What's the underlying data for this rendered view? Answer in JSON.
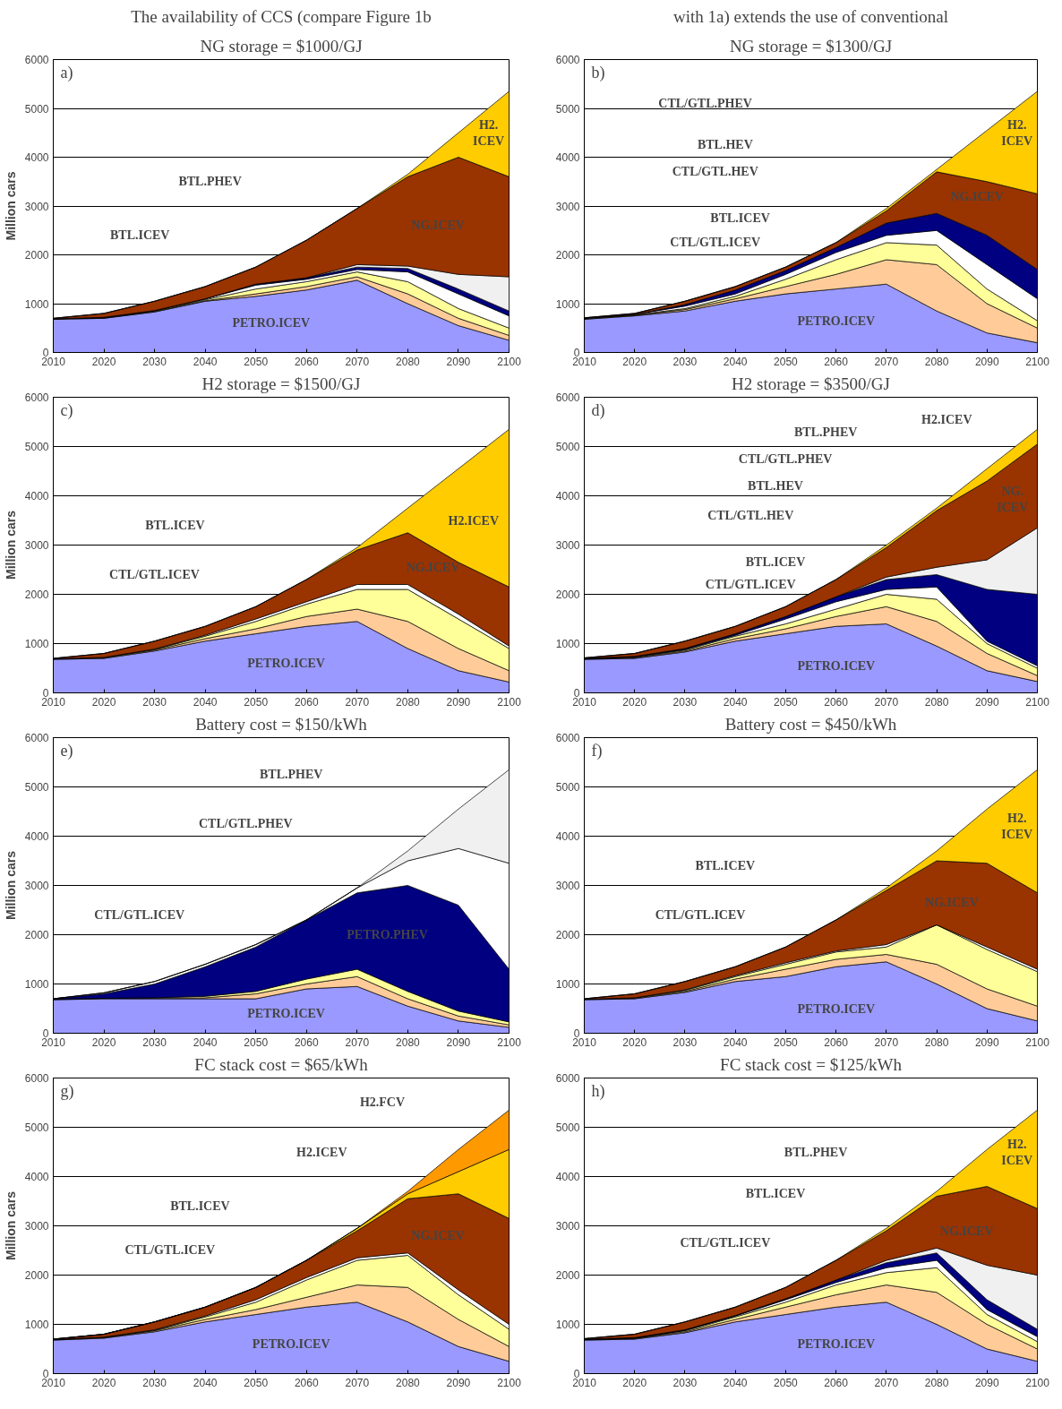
{
  "chart_data": [
    {
      "type": "area",
      "stacked": true,
      "title": "The availability of CCS (compare Figure 1b",
      "subtitle": "NG storage = $1000/GJ",
      "ylabel": "Million cars",
      "x": [
        2010,
        2020,
        2030,
        2040,
        2050,
        2060,
        2070,
        2080,
        2090,
        2100
      ],
      "xlim": [
        2010,
        2100
      ],
      "xticks": [
        2010,
        2020,
        2030,
        2040,
        2050,
        2060,
        2070,
        2080,
        2090,
        2100
      ],
      "ylim": [
        0,
        6000
      ],
      "yticks": [
        0,
        1000,
        2000,
        3000,
        4000,
        5000,
        6000
      ],
      "grid": "y",
      "series": [
        {
          "color": "#9999ff",
          "values": [
            680,
            700,
            830,
            1050,
            1150,
            1280,
            1480,
            1000,
            550,
            250
          ]
        },
        {
          "color": "#ffcc99",
          "values": [
            10,
            10,
            10,
            10,
            50,
            70,
            70,
            200,
            150,
            100
          ]
        },
        {
          "color": "#ffff99",
          "values": [
            0,
            0,
            10,
            20,
            100,
            100,
            100,
            250,
            200,
            150
          ]
        },
        {
          "color": "#ffffff",
          "values": [
            0,
            10,
            10,
            20,
            80,
            50,
            50,
            200,
            300,
            250
          ]
        },
        {
          "color": "#000080",
          "values": [
            0,
            0,
            0,
            0,
            20,
            30,
            50,
            70,
            100,
            100
          ]
        },
        {
          "color": "#f0f0f0",
          "values": [
            0,
            0,
            0,
            0,
            0,
            0,
            50,
            50,
            300,
            700
          ]
        },
        {
          "color": "#993300",
          "values": [
            10,
            80,
            190,
            250,
            350,
            770,
            1150,
            1830,
            2400,
            2050
          ]
        },
        {
          "color": "#ffcc00",
          "values": [
            0,
            0,
            0,
            0,
            0,
            0,
            0,
            50,
            500,
            1750
          ]
        }
      ],
      "annotations": [
        "a)",
        "PETRO.ICEV",
        "BTL.ICEV",
        "BTL.PHEV",
        "NG.ICEV",
        "H2.\nICEV"
      ]
    },
    {
      "type": "area",
      "stacked": true,
      "title": "with 1a) extends the use of conventional",
      "subtitle": "NG storage = $1300/GJ",
      "x": [
        2010,
        2020,
        2030,
        2040,
        2050,
        2060,
        2070,
        2080,
        2090,
        2100
      ],
      "xlim": [
        2010,
        2100
      ],
      "xticks": [
        2010,
        2020,
        2030,
        2040,
        2050,
        2060,
        2070,
        2080,
        2090,
        2100
      ],
      "ylim": [
        0,
        6000
      ],
      "yticks": [
        0,
        1000,
        2000,
        3000,
        4000,
        5000,
        6000
      ],
      "grid": "y",
      "series": [
        {
          "color": "#9999ff",
          "values": [
            680,
            750,
            850,
            1050,
            1200,
            1300,
            1400,
            850,
            400,
            200
          ]
        },
        {
          "color": "#ffcc99",
          "values": [
            10,
            10,
            30,
            50,
            150,
            300,
            500,
            950,
            600,
            300
          ]
        },
        {
          "color": "#ffff99",
          "values": [
            0,
            10,
            20,
            50,
            150,
            300,
            350,
            400,
            300,
            150
          ]
        },
        {
          "color": "#ffffff",
          "values": [
            10,
            10,
            50,
            50,
            100,
            150,
            150,
            300,
            500,
            450
          ]
        },
        {
          "color": "#000080",
          "values": [
            0,
            0,
            30,
            80,
            80,
            100,
            250,
            350,
            600,
            600
          ]
        },
        {
          "color": "#993300",
          "values": [
            10,
            20,
            70,
            70,
            70,
            100,
            250,
            850,
            1100,
            1550
          ]
        },
        {
          "color": "#ffcc00",
          "values": [
            0,
            0,
            0,
            0,
            0,
            0,
            50,
            50,
            1050,
            2100
          ]
        }
      ],
      "annotations": [
        "b)",
        "CTL/GTL.PHEV",
        "BTL.HEV",
        "CTL/GTL.HEV",
        "BTL.ICEV",
        "CTL/GTL.ICEV",
        "NG.ICEV",
        "H2.\nICEV",
        "PETRO.ICEV"
      ]
    },
    {
      "type": "area",
      "stacked": true,
      "title": "H2 storage = $1500/GJ",
      "ylabel": "Million cars",
      "x": [
        2010,
        2020,
        2030,
        2040,
        2050,
        2060,
        2070,
        2080,
        2090,
        2100
      ],
      "xlim": [
        2010,
        2100
      ],
      "xticks": [
        2010,
        2020,
        2030,
        2040,
        2050,
        2060,
        2070,
        2080,
        2090,
        2100
      ],
      "ylim": [
        0,
        6000
      ],
      "yticks": [
        0,
        1000,
        2000,
        3000,
        4000,
        5000,
        6000
      ],
      "grid": "y",
      "series": [
        {
          "color": "#9999ff",
          "values": [
            680,
            700,
            850,
            1050,
            1200,
            1350,
            1450,
            900,
            450,
            220
          ]
        },
        {
          "color": "#ffcc99",
          "values": [
            10,
            10,
            20,
            50,
            100,
            200,
            250,
            550,
            450,
            230
          ]
        },
        {
          "color": "#ffff99",
          "values": [
            0,
            10,
            10,
            50,
            150,
            250,
            400,
            650,
            600,
            450
          ]
        },
        {
          "color": "#ffffff",
          "values": [
            0,
            0,
            10,
            20,
            50,
            50,
            100,
            100,
            100,
            50
          ]
        },
        {
          "color": "#993300",
          "values": [
            10,
            80,
            160,
            180,
            250,
            450,
            700,
            1050,
            1050,
            1200
          ]
        },
        {
          "color": "#ffcc00",
          "values": [
            0,
            0,
            0,
            0,
            0,
            0,
            50,
            500,
            1900,
            3200
          ]
        }
      ],
      "annotations": [
        "c)",
        "BTL.ICEV",
        "CTL/GTL.ICEV",
        "NG.ICEV",
        "H2.ICEV",
        "PETRO.ICEV"
      ]
    },
    {
      "type": "area",
      "stacked": true,
      "title": "H2 storage = $3500/GJ",
      "x": [
        2010,
        2020,
        2030,
        2040,
        2050,
        2060,
        2070,
        2080,
        2090,
        2100
      ],
      "xlim": [
        2010,
        2100
      ],
      "xticks": [
        2010,
        2020,
        2030,
        2040,
        2050,
        2060,
        2070,
        2080,
        2090,
        2100
      ],
      "ylim": [
        0,
        6000
      ],
      "yticks": [
        0,
        1000,
        2000,
        3000,
        4000,
        5000,
        6000
      ],
      "grid": "y",
      "series": [
        {
          "color": "#9999ff",
          "values": [
            680,
            700,
            830,
            1050,
            1200,
            1350,
            1400,
            950,
            450,
            230
          ]
        },
        {
          "color": "#ffcc99",
          "values": [
            10,
            10,
            20,
            50,
            100,
            200,
            350,
            500,
            350,
            120
          ]
        },
        {
          "color": "#ffff99",
          "values": [
            0,
            10,
            20,
            50,
            100,
            150,
            250,
            450,
            200,
            150
          ]
        },
        {
          "color": "#ffffff",
          "values": [
            0,
            10,
            10,
            20,
            100,
            150,
            100,
            250,
            50,
            50
          ]
        },
        {
          "color": "#000080",
          "values": [
            10,
            10,
            20,
            30,
            50,
            100,
            200,
            250,
            1050,
            1450
          ]
        },
        {
          "color": "#f0f0f0",
          "values": [
            0,
            0,
            0,
            0,
            0,
            0,
            50,
            150,
            600,
            1350
          ]
        },
        {
          "color": "#993300",
          "values": [
            10,
            60,
            150,
            150,
            200,
            350,
            600,
            1150,
            1600,
            1700
          ]
        },
        {
          "color": "#ffcc00",
          "values": [
            0,
            0,
            0,
            0,
            0,
            0,
            50,
            50,
            250,
            300
          ]
        }
      ],
      "annotations": [
        "d)",
        "BTL.PHEV",
        "H2.ICEV",
        "CTL/GTL.PHEV",
        "BTL.HEV",
        "CTL/GTL.HEV",
        "BTL.ICEV",
        "CTL/GTL.ICEV",
        "NG.\nICEV",
        "PETRO.ICEV"
      ]
    },
    {
      "type": "area",
      "stacked": true,
      "title": "Battery cost = $150/kWh",
      "ylabel": "Million cars",
      "x": [
        2010,
        2020,
        2030,
        2040,
        2050,
        2060,
        2070,
        2080,
        2090,
        2100
      ],
      "xlim": [
        2010,
        2100
      ],
      "xticks": [
        2010,
        2020,
        2030,
        2040,
        2050,
        2060,
        2070,
        2080,
        2090,
        2100
      ],
      "ylim": [
        0,
        6000
      ],
      "yticks": [
        0,
        1000,
        2000,
        3000,
        4000,
        5000,
        6000
      ],
      "grid": "y",
      "series": [
        {
          "color": "#9999ff",
          "values": [
            680,
            700,
            700,
            700,
            700,
            900,
            950,
            550,
            250,
            120
          ]
        },
        {
          "color": "#ffcc99",
          "values": [
            10,
            10,
            10,
            20,
            100,
            100,
            200,
            150,
            100,
            50
          ]
        },
        {
          "color": "#ffff99",
          "values": [
            0,
            0,
            10,
            30,
            50,
            100,
            150,
            150,
            100,
            60
          ]
        },
        {
          "color": "#000080",
          "values": [
            10,
            90,
            280,
            600,
            900,
            1200,
            1550,
            2150,
            2150,
            1070
          ]
        },
        {
          "color": "#ffffff",
          "values": [
            0,
            20,
            50,
            50,
            50,
            0,
            100,
            500,
            1150,
            2150
          ]
        },
        {
          "color": "#f0f0f0",
          "values": [
            0,
            0,
            0,
            0,
            0,
            0,
            0,
            200,
            800,
            1900
          ]
        }
      ],
      "annotations": [
        "e)",
        "BTL.PHEV",
        "CTL/GTL.PHEV",
        "CTL/GTL.ICEV",
        "PETRO.PHEV",
        "PETRO.ICEV"
      ]
    },
    {
      "type": "area",
      "stacked": true,
      "title": "Battery cost = $450/kWh",
      "x": [
        2010,
        2020,
        2030,
        2040,
        2050,
        2060,
        2070,
        2080,
        2090,
        2100
      ],
      "xlim": [
        2010,
        2100
      ],
      "xticks": [
        2010,
        2020,
        2030,
        2040,
        2050,
        2060,
        2070,
        2080,
        2090,
        2100
      ],
      "ylim": [
        0,
        6000
      ],
      "yticks": [
        0,
        1000,
        2000,
        3000,
        4000,
        5000,
        6000
      ],
      "grid": "y",
      "series": [
        {
          "color": "#9999ff",
          "values": [
            680,
            700,
            830,
            1050,
            1150,
            1350,
            1450,
            1000,
            500,
            250
          ]
        },
        {
          "color": "#ffcc99",
          "values": [
            10,
            10,
            20,
            50,
            150,
            150,
            150,
            400,
            400,
            300
          ]
        },
        {
          "color": "#ffff99",
          "values": [
            0,
            10,
            20,
            50,
            100,
            150,
            150,
            800,
            800,
            700
          ]
        },
        {
          "color": "#ffffff",
          "values": [
            0,
            0,
            10,
            20,
            30,
            20,
            50,
            0,
            50,
            50
          ]
        },
        {
          "color": "#993300",
          "values": [
            10,
            80,
            170,
            180,
            320,
            630,
            1100,
            1300,
            1700,
            1550
          ]
        },
        {
          "color": "#ffcc00",
          "values": [
            0,
            0,
            0,
            0,
            0,
            0,
            50,
            200,
            1100,
            2500
          ]
        }
      ],
      "annotations": [
        "f)",
        "H2.\nICEV",
        "BTL.ICEV",
        "NG.ICEV",
        "CTL/GTL.ICEV",
        "PETRO.ICEV"
      ]
    },
    {
      "type": "area",
      "stacked": true,
      "title": "FC stack cost = $65/kWh",
      "ylabel": "Million cars",
      "x": [
        2010,
        2020,
        2030,
        2040,
        2050,
        2060,
        2070,
        2080,
        2090,
        2100
      ],
      "xlim": [
        2010,
        2100
      ],
      "xticks": [
        2010,
        2020,
        2030,
        2040,
        2050,
        2060,
        2070,
        2080,
        2090,
        2100
      ],
      "ylim": [
        0,
        6000
      ],
      "yticks": [
        0,
        1000,
        2000,
        3000,
        4000,
        5000,
        6000
      ],
      "grid": "y",
      "series": [
        {
          "color": "#9999ff",
          "values": [
            680,
            720,
            850,
            1050,
            1200,
            1350,
            1450,
            1050,
            550,
            250
          ]
        },
        {
          "color": "#ffcc99",
          "values": [
            10,
            10,
            20,
            50,
            100,
            200,
            350,
            700,
            550,
            300
          ]
        },
        {
          "color": "#ffff99",
          "values": [
            0,
            10,
            10,
            50,
            150,
            350,
            500,
            650,
            500,
            350
          ]
        },
        {
          "color": "#ffffff",
          "values": [
            0,
            0,
            10,
            20,
            50,
            50,
            50,
            50,
            100,
            100
          ]
        },
        {
          "color": "#993300",
          "values": [
            10,
            60,
            160,
            180,
            250,
            350,
            550,
            1100,
            1950,
            2150
          ]
        },
        {
          "color": "#ffcc00",
          "values": [
            0,
            0,
            0,
            0,
            0,
            0,
            50,
            100,
            450,
            1400
          ]
        },
        {
          "color": "#ff9900",
          "values": [
            0,
            0,
            0,
            0,
            0,
            0,
            0,
            50,
            450,
            800
          ]
        }
      ],
      "annotations": [
        "g)",
        "H2.FCV",
        "H2.ICEV",
        "BTL.ICEV",
        "CTL/GTL.ICEV",
        "NG.ICEV",
        "PETRO.ICEV"
      ]
    },
    {
      "type": "area",
      "stacked": true,
      "title": "FC stack cost = $125/kWh",
      "x": [
        2010,
        2020,
        2030,
        2040,
        2050,
        2060,
        2070,
        2080,
        2090,
        2100
      ],
      "xlim": [
        2010,
        2100
      ],
      "xticks": [
        2010,
        2020,
        2030,
        2040,
        2050,
        2060,
        2070,
        2080,
        2090,
        2100
      ],
      "ylim": [
        0,
        6000
      ],
      "yticks": [
        0,
        1000,
        2000,
        3000,
        4000,
        5000,
        6000
      ],
      "grid": "y",
      "series": [
        {
          "color": "#9999ff",
          "values": [
            680,
            700,
            830,
            1050,
            1200,
            1350,
            1450,
            1000,
            500,
            250
          ]
        },
        {
          "color": "#ffcc99",
          "values": [
            10,
            10,
            20,
            50,
            150,
            250,
            350,
            650,
            500,
            250
          ]
        },
        {
          "color": "#ffff99",
          "values": [
            0,
            10,
            20,
            50,
            100,
            200,
            250,
            500,
            200,
            150
          ]
        },
        {
          "color": "#ffffff",
          "values": [
            0,
            0,
            10,
            20,
            50,
            50,
            100,
            150,
            100,
            100
          ]
        },
        {
          "color": "#000080",
          "values": [
            10,
            10,
            10,
            10,
            20,
            50,
            100,
            150,
            200,
            150
          ]
        },
        {
          "color": "#f0f0f0",
          "values": [
            0,
            0,
            0,
            0,
            0,
            0,
            50,
            100,
            700,
            1100
          ]
        },
        {
          "color": "#993300",
          "values": [
            10,
            70,
            160,
            170,
            230,
            400,
            600,
            1050,
            1600,
            1350
          ]
        },
        {
          "color": "#ffcc00",
          "values": [
            0,
            0,
            0,
            0,
            0,
            0,
            50,
            100,
            750,
            2000
          ]
        }
      ],
      "annotations": [
        "h)",
        "BTL.PHEV",
        "BTL.ICEV",
        "CTL/GTL.ICEV",
        "NG.ICEV",
        "H2.\nICEV",
        "PETRO.ICEV"
      ]
    }
  ]
}
